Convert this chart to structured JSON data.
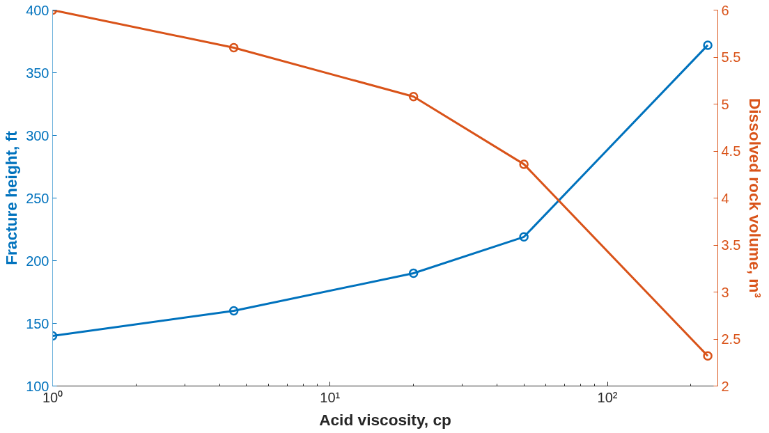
{
  "chart_data": {
    "type": "line",
    "xlabel": "Acid viscosity, cp",
    "ylabel": "Fracture height, ft",
    "y2label": "Dissolved rock volume, m³",
    "log": "x",
    "grid": false,
    "marker": "circle",
    "line_style": "solid",
    "xlim": [
      1,
      250
    ],
    "xticks": [
      {
        "value": 1,
        "label": "10⁰"
      },
      {
        "value": 10,
        "label": "10¹"
      },
      {
        "value": 100,
        "label": "10²"
      }
    ],
    "ylim": [
      100,
      400
    ],
    "yticks": [
      100,
      150,
      200,
      250,
      300,
      350,
      400
    ],
    "y2lim": [
      2,
      6
    ],
    "y2ticks": [
      2,
      2.5,
      3,
      3.5,
      4,
      4.5,
      5,
      5.5,
      6
    ],
    "x": [
      1,
      4.5,
      20,
      50,
      230
    ],
    "series": [
      {
        "color": "#0072bd",
        "values": [
          140,
          160,
          190,
          219,
          372
        ]
      },
      {
        "color": "#d95319",
        "axis": "y2",
        "values": [
          6.0,
          5.6,
          5.08,
          4.36,
          2.32
        ]
      }
    ]
  }
}
